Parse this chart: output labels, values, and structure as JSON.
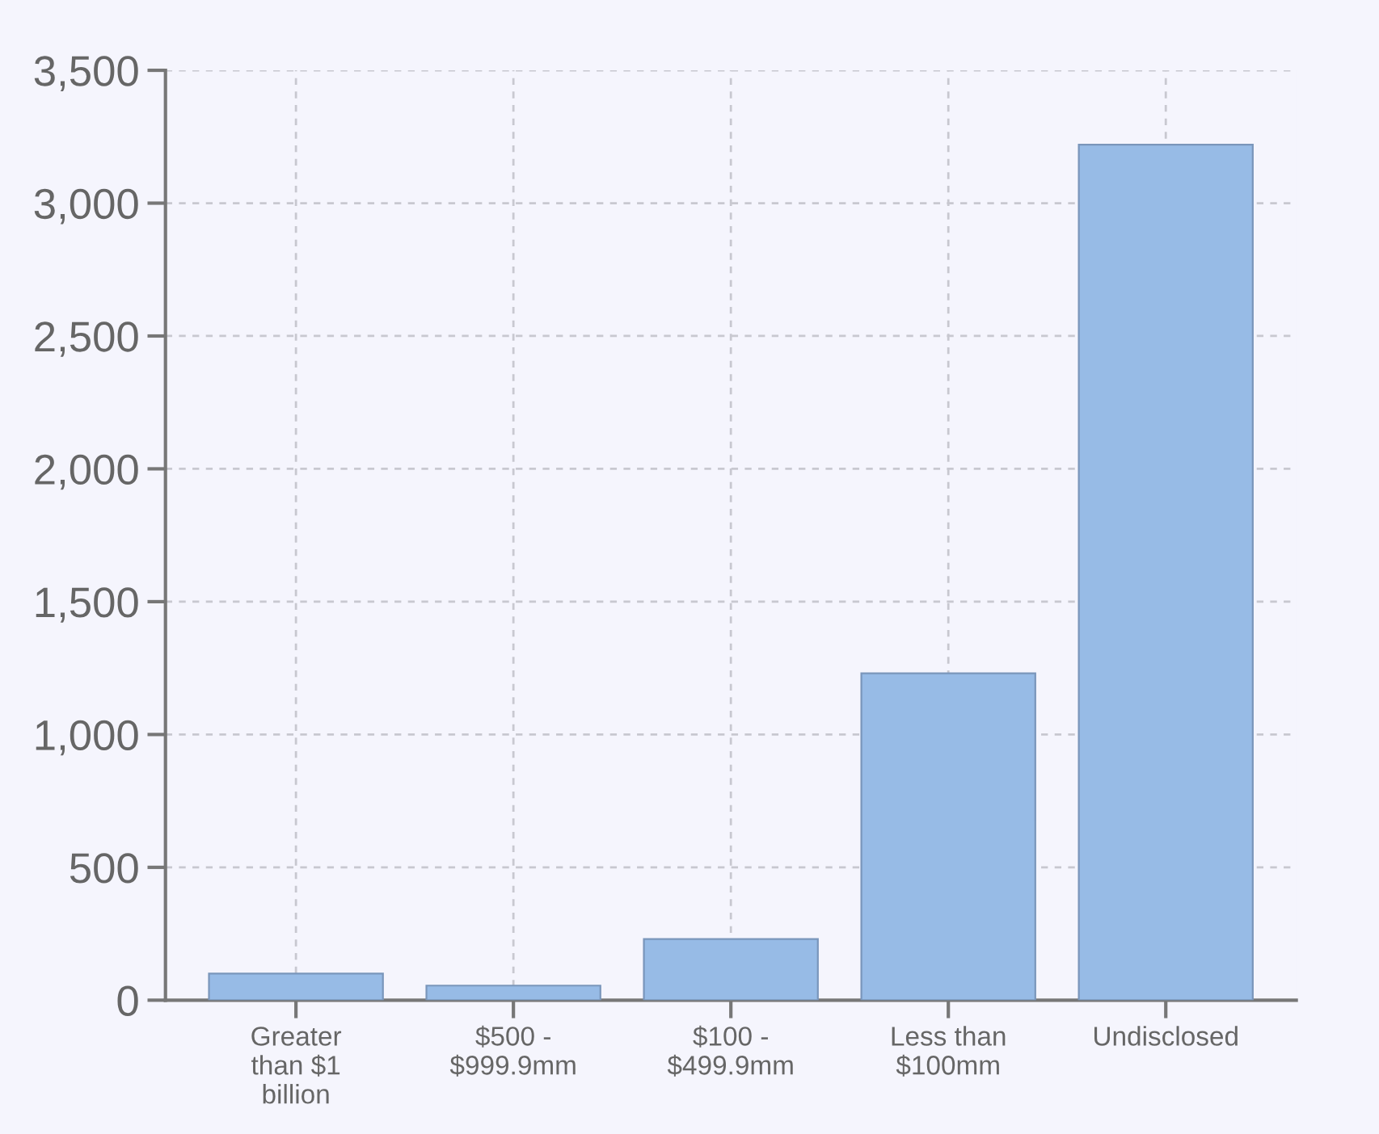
{
  "chart_data": {
    "type": "bar",
    "categories": [
      "Greater\nthan $1\nbillion",
      "$500 -\n$999.9mm",
      "$100 -\n$499.9mm",
      "Less than\n$100mm",
      "Undisclosed"
    ],
    "values": [
      100,
      55,
      230,
      1230,
      3220
    ],
    "color": "#97bbe6",
    "ylim": [
      0,
      3500
    ],
    "yticks": [
      {
        "value": 0,
        "label": "0"
      },
      {
        "value": 500,
        "label": "500"
      },
      {
        "value": 1000,
        "label": "1,000"
      },
      {
        "value": 1500,
        "label": "1,500"
      },
      {
        "value": 2000,
        "label": "2,000"
      },
      {
        "value": 2500,
        "label": "2,500"
      },
      {
        "value": 3000,
        "label": "3,000"
      },
      {
        "value": 3500,
        "label": "3,500"
      }
    ],
    "grid": true
  }
}
